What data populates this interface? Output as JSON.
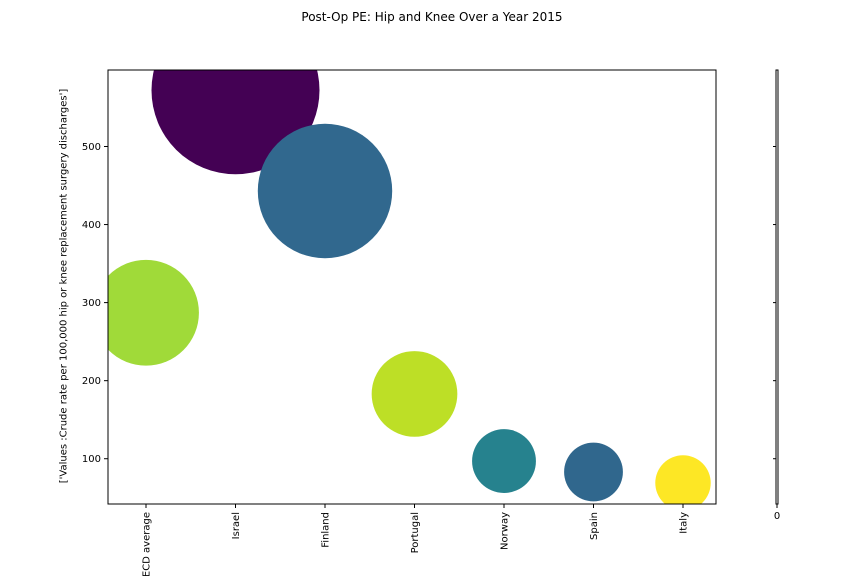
{
  "chart_data": {
    "type": "scatter",
    "title": "Post-Op PE: Hip and Knee Over a Year 2015",
    "ylabel": "['Values :Crude rate per 100,000 hip or knee replacement surgery discharges']",
    "xlabel": "",
    "categories": [
      "OECD average",
      "Israel",
      "Finland",
      "Portugal",
      "Norway",
      "Spain",
      "Italy"
    ],
    "values": [
      287,
      572,
      443,
      183,
      97,
      83,
      69
    ],
    "bubble_size_relative": [
      0.63,
      1.0,
      0.8,
      0.51,
      0.38,
      0.35,
      0.33
    ],
    "colors": [
      "#a0da39",
      "#440154",
      "#31688e",
      "#bddf26",
      "#26828e",
      "#30678d",
      "#fde725"
    ],
    "yticks": [
      100,
      200,
      300,
      400,
      500
    ],
    "ylim": [
      42,
      598
    ],
    "grid": false,
    "colorbar_tick_label": "0"
  }
}
